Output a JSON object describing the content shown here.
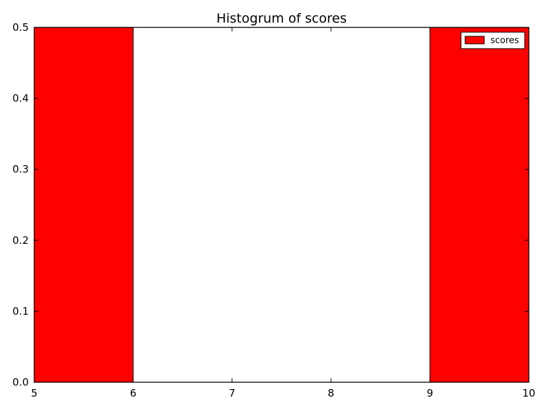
{
  "chart_data": {
    "type": "bar",
    "title": "Histogrum of scores",
    "xlabel": "",
    "ylabel": "",
    "xlim": [
      5,
      10
    ],
    "ylim": [
      0,
      0.5
    ],
    "xticks": [
      "5",
      "6",
      "7",
      "8",
      "9",
      "10"
    ],
    "yticks": [
      "0.0",
      "0.1",
      "0.2",
      "0.3",
      "0.4",
      "0.5"
    ],
    "bins": [
      {
        "x0": 5,
        "x1": 6,
        "value": 0.5
      },
      {
        "x0": 6,
        "x1": 7,
        "value": 0.0
      },
      {
        "x0": 7,
        "x1": 8,
        "value": 0.0
      },
      {
        "x0": 8,
        "x1": 9,
        "value": 0.0
      },
      {
        "x0": 9,
        "x1": 10,
        "value": 0.5
      }
    ],
    "series": [
      {
        "name": "scores",
        "color": "#ff0000"
      }
    ],
    "legend": {
      "position": "top-right"
    },
    "grid": false
  }
}
